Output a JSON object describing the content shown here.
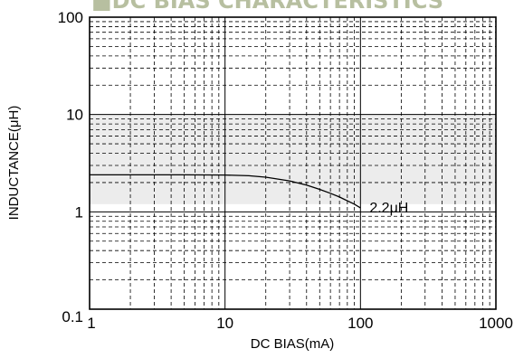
{
  "chart_data": {
    "type": "line",
    "title": "■DC BIAS CHARACTERISTICS",
    "xlabel": "DC BIAS(mA)",
    "ylabel": "INDUCTANCE(μH)",
    "x_scale": "log",
    "y_scale": "log",
    "xlim": [
      1,
      1000
    ],
    "ylim": [
      0.1,
      100
    ],
    "x_ticks": [
      "1",
      "10",
      "100",
      "1000"
    ],
    "y_ticks": [
      "100",
      "10",
      "1",
      "0.1"
    ],
    "grid": true,
    "shaded_band": [
      1.2,
      10
    ],
    "series": [
      {
        "name": "2.2μH",
        "color": "#000000",
        "x": [
          1,
          5,
          10,
          15,
          20,
          30,
          40,
          50,
          60,
          70,
          80,
          90,
          100
        ],
        "y": [
          2.4,
          2.4,
          2.39,
          2.35,
          2.27,
          2.08,
          1.88,
          1.7,
          1.55,
          1.42,
          1.3,
          1.2,
          1.1
        ]
      }
    ]
  }
}
